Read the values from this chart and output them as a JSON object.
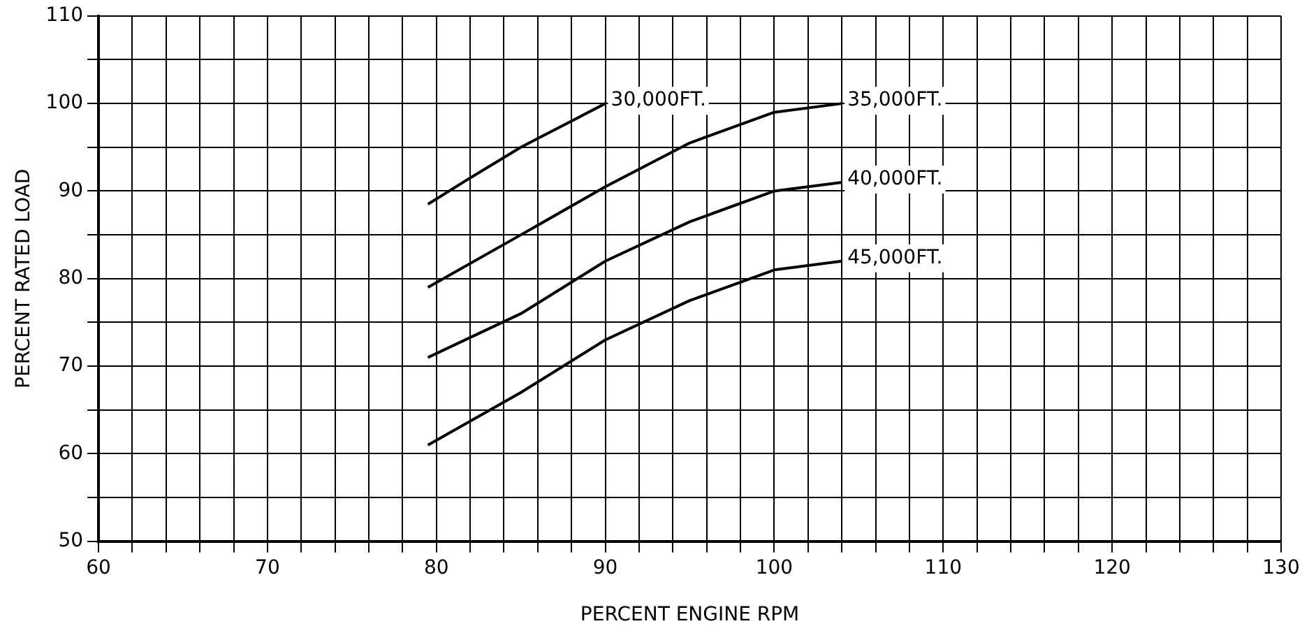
{
  "chart_data": {
    "type": "line",
    "xlabel": "PERCENT ENGINE RPM",
    "ylabel": "PERCENT RATED LOAD",
    "xlim": [
      60,
      130
    ],
    "ylim": [
      50,
      110
    ],
    "xticks": [
      60,
      {
        "value": 62,
        "label": null
      },
      {
        "value": 64,
        "label": null
      },
      {
        "value": 66,
        "label": null
      },
      {
        "value": 68,
        "label": null
      },
      70,
      {
        "value": 72,
        "label": null
      },
      {
        "value": 74,
        "label": null
      },
      {
        "value": 76,
        "label": null
      },
      {
        "value": 78,
        "label": null
      },
      80,
      {
        "value": 82,
        "label": null
      },
      {
        "value": 84,
        "label": null
      },
      {
        "value": 86,
        "label": null
      },
      {
        "value": 88,
        "label": null
      },
      90,
      {
        "value": 92,
        "label": null
      },
      {
        "value": 94,
        "label": null
      },
      {
        "value": 96,
        "label": null
      },
      {
        "value": 98,
        "label": null
      },
      100,
      {
        "value": 102,
        "label": null
      },
      {
        "value": 104,
        "label": null
      },
      {
        "value": 106,
        "label": null
      },
      {
        "value": 108,
        "label": null
      },
      110,
      {
        "value": 112,
        "label": null
      },
      {
        "value": 114,
        "label": null
      },
      {
        "value": 116,
        "label": null
      },
      {
        "value": 118,
        "label": null
      },
      120,
      {
        "value": 122,
        "label": null
      },
      {
        "value": 124,
        "label": null
      },
      {
        "value": 126,
        "label": null
      },
      {
        "value": 128,
        "label": null
      },
      130
    ],
    "yticks": [
      50,
      {
        "value": 55,
        "label": null
      },
      60,
      {
        "value": 65,
        "label": null
      },
      70,
      {
        "value": 75,
        "label": null
      },
      80,
      {
        "value": 85,
        "label": null
      },
      90,
      {
        "value": 95,
        "label": null
      },
      100,
      {
        "value": 105,
        "label": null
      },
      110
    ],
    "grid": true,
    "legend": false,
    "marker": "none",
    "line_style": "solid",
    "series": [
      {
        "name": "30,000FT.",
        "color": "#000000",
        "x": [
          79.5,
          82,
          85,
          88,
          90
        ],
        "values": [
          88.5,
          91.5,
          95,
          98,
          100
        ]
      },
      {
        "name": "35,000FT.",
        "color": "#000000",
        "x": [
          79.5,
          85,
          90,
          95,
          100,
          104
        ],
        "values": [
          79,
          85,
          90.5,
          95.5,
          99,
          100
        ]
      },
      {
        "name": "40,000FT.",
        "color": "#000000",
        "x": [
          79.5,
          85,
          90,
          95,
          100,
          104
        ],
        "values": [
          71,
          76,
          82,
          86.5,
          90,
          91
        ]
      },
      {
        "name": "45,000FT.",
        "color": "#000000",
        "x": [
          79.5,
          85,
          90,
          95,
          100,
          104
        ],
        "values": [
          61,
          67,
          73,
          77.5,
          81,
          82
        ]
      }
    ]
  }
}
